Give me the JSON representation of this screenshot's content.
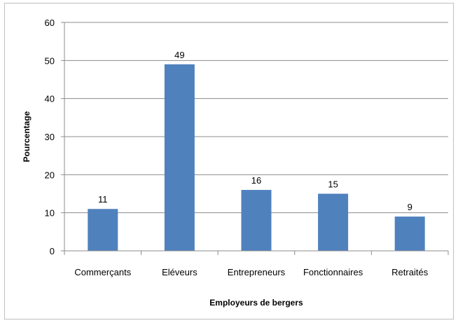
{
  "chart_data": {
    "type": "bar",
    "categories": [
      "Commerçants",
      "Eléveurs",
      "Entrepreneurs",
      "Fonctionnaires",
      "Retraités"
    ],
    "values": [
      11,
      49,
      16,
      15,
      9
    ],
    "data_labels": [
      "11",
      "49",
      "16",
      "15",
      "9"
    ],
    "title": "",
    "xlabel": "Employeurs de bergers",
    "ylabel": "Pourcentage",
    "ylim": [
      0,
      60
    ],
    "yticks": [
      "0",
      "10",
      "20",
      "30",
      "40",
      "50",
      "60"
    ],
    "grid": true,
    "legend": "none",
    "bar_color": "#4f81bd",
    "grid_color": "#8c8c8c"
  }
}
